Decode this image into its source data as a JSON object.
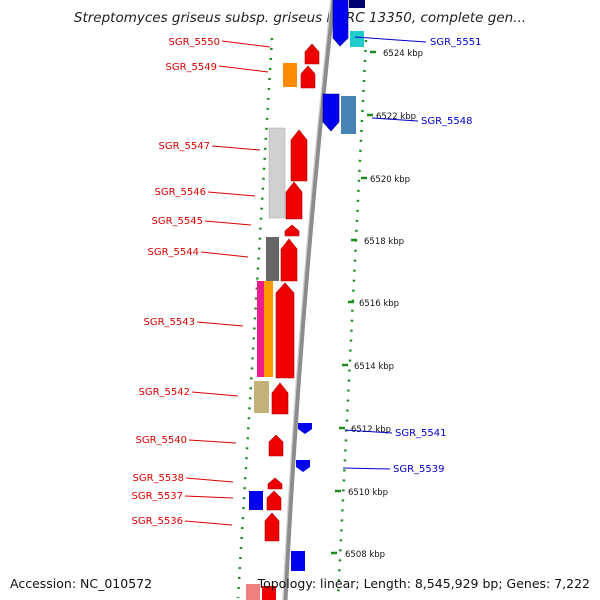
{
  "title": "Streptomyces griseus subsp. griseus NBRC 13350, complete gen...",
  "footer": {
    "accession": "Accession: NC_010572",
    "topology": "Topology: linear; Length: 8,545,929 bp; Genes: 7,222"
  },
  "colors": {
    "axis": "#9a9a9a",
    "forward_label": "#dd0000",
    "reverse_label": "#0000cc",
    "dotted_track": "#1e8a1e",
    "forward_gene": "#ff0000",
    "reverse_gene": "#0000ff"
  },
  "scale_labels": [
    "6524 kbp",
    "6522 kbp",
    "6520 kbp",
    "6518 kbp",
    "6516 kbp",
    "6514 kbp",
    "6512 kbp",
    "6510 kbp",
    "6508 kbp"
  ],
  "left_labels": [
    "SGR_5550",
    "SGR_5549",
    "SGR_5547",
    "SGR_5546",
    "SGR_5545",
    "SGR_5544",
    "SGR_5543",
    "SGR_5542",
    "SGR_5540",
    "SGR_5538",
    "SGR_5537",
    "SGR_5536"
  ],
  "right_labels": [
    "SGR_5551",
    "SGR_5548",
    "SGR_5541",
    "SGR_5539"
  ]
}
